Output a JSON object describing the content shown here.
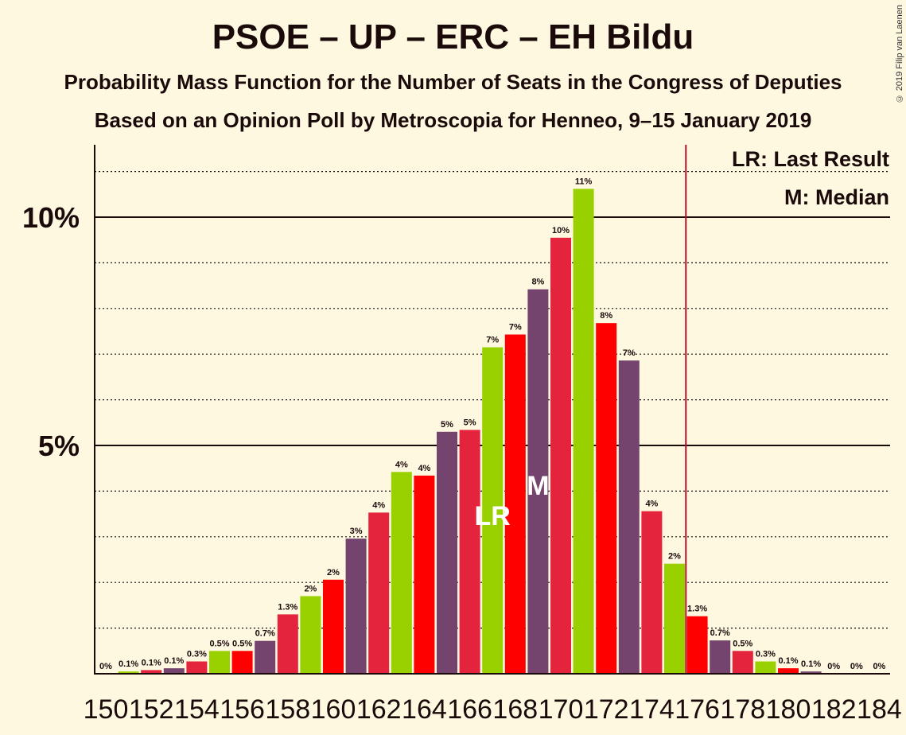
{
  "title": "PSOE – UP – ERC – EH Bildu",
  "subtitle1": "Probability Mass Function for the Number of Seats in the Congress of Deputies",
  "subtitle2": "Based on an Opinion Poll by Metroscopia for Henneo, 9–15 January 2019",
  "copyright": "© 2019 Filip van Laenen",
  "legend": {
    "lr": "LR: Last Result",
    "m": "M: Median"
  },
  "markers": {
    "lr_label": "LR",
    "median_label": "M"
  },
  "colors": {
    "background": "#FFF8E1",
    "psoe_red": "#E3243C",
    "bright_red": "#FF0000",
    "up_purple": "#74446E",
    "green": "#99D100",
    "majority_line": "#B0102A"
  },
  "chart_data": {
    "type": "bar",
    "xlabel": "",
    "ylabel": "",
    "ylim": [
      0,
      11.6
    ],
    "yticks": [
      {
        "value": 5,
        "label": "5%"
      },
      {
        "value": 10,
        "label": "10%"
      }
    ],
    "x_tick_labels": [
      "150",
      "152",
      "154",
      "156",
      "158",
      "160",
      "162",
      "164",
      "166",
      "168",
      "170",
      "172",
      "174",
      "176",
      "178",
      "180",
      "182",
      "184"
    ],
    "majority_threshold": 175.5,
    "last_result": 167,
    "median": 169,
    "bars": [
      {
        "seats": 150,
        "value": 0.0,
        "label": "0%",
        "color": "#99D100"
      },
      {
        "seats": 151,
        "value": 0.05,
        "label": "0.1%",
        "color": "#99D100"
      },
      {
        "seats": 152,
        "value": 0.08,
        "label": "0.1%",
        "color": "#E3243C"
      },
      {
        "seats": 153,
        "value": 0.12,
        "label": "0.1%",
        "color": "#74446E"
      },
      {
        "seats": 154,
        "value": 0.27,
        "label": "0.3%",
        "color": "#E3243C"
      },
      {
        "seats": 155,
        "value": 0.5,
        "label": "0.5%",
        "color": "#99D100"
      },
      {
        "seats": 156,
        "value": 0.5,
        "label": "0.5%",
        "color": "#FF0000"
      },
      {
        "seats": 157,
        "value": 0.72,
        "label": "0.7%",
        "color": "#74446E"
      },
      {
        "seats": 158,
        "value": 1.3,
        "label": "1.3%",
        "color": "#E3243C"
      },
      {
        "seats": 159,
        "value": 1.7,
        "label": "2%",
        "color": "#99D100"
      },
      {
        "seats": 160,
        "value": 2.06,
        "label": "2%",
        "color": "#FF0000"
      },
      {
        "seats": 161,
        "value": 2.96,
        "label": "3%",
        "color": "#74446E"
      },
      {
        "seats": 162,
        "value": 3.53,
        "label": "4%",
        "color": "#E3243C"
      },
      {
        "seats": 163,
        "value": 4.42,
        "label": "4%",
        "color": "#99D100"
      },
      {
        "seats": 164,
        "value": 4.34,
        "label": "4%",
        "color": "#FF0000"
      },
      {
        "seats": 165,
        "value": 5.3,
        "label": "5%",
        "color": "#74446E"
      },
      {
        "seats": 166,
        "value": 5.34,
        "label": "5%",
        "color": "#E3243C"
      },
      {
        "seats": 167,
        "value": 7.15,
        "label": "7%",
        "color": "#99D100"
      },
      {
        "seats": 168,
        "value": 7.43,
        "label": "7%",
        "color": "#FF0000"
      },
      {
        "seats": 169,
        "value": 8.42,
        "label": "8%",
        "color": "#74446E"
      },
      {
        "seats": 170,
        "value": 9.55,
        "label": "10%",
        "color": "#E3243C"
      },
      {
        "seats": 171,
        "value": 10.62,
        "label": "11%",
        "color": "#99D100"
      },
      {
        "seats": 172,
        "value": 7.68,
        "label": "8%",
        "color": "#FF0000"
      },
      {
        "seats": 173,
        "value": 6.86,
        "label": "7%",
        "color": "#74446E"
      },
      {
        "seats": 174,
        "value": 3.56,
        "label": "4%",
        "color": "#E3243C"
      },
      {
        "seats": 175,
        "value": 2.41,
        "label": "2%",
        "color": "#99D100"
      },
      {
        "seats": 176,
        "value": 1.26,
        "label": "1.3%",
        "color": "#FF0000"
      },
      {
        "seats": 177,
        "value": 0.73,
        "label": "0.7%",
        "color": "#74446E"
      },
      {
        "seats": 178,
        "value": 0.5,
        "label": "0.5%",
        "color": "#E3243C"
      },
      {
        "seats": 179,
        "value": 0.27,
        "label": "0.3%",
        "color": "#99D100"
      },
      {
        "seats": 180,
        "value": 0.12,
        "label": "0.1%",
        "color": "#FF0000"
      },
      {
        "seats": 181,
        "value": 0.05,
        "label": "0.1%",
        "color": "#74446E"
      },
      {
        "seats": 182,
        "value": 0.0,
        "label": "0%",
        "color": "#E3243C"
      },
      {
        "seats": 183,
        "value": 0.0,
        "label": "0%",
        "color": "#99D100"
      },
      {
        "seats": 184,
        "value": 0.0,
        "label": "0%",
        "color": "#FF0000"
      }
    ]
  }
}
